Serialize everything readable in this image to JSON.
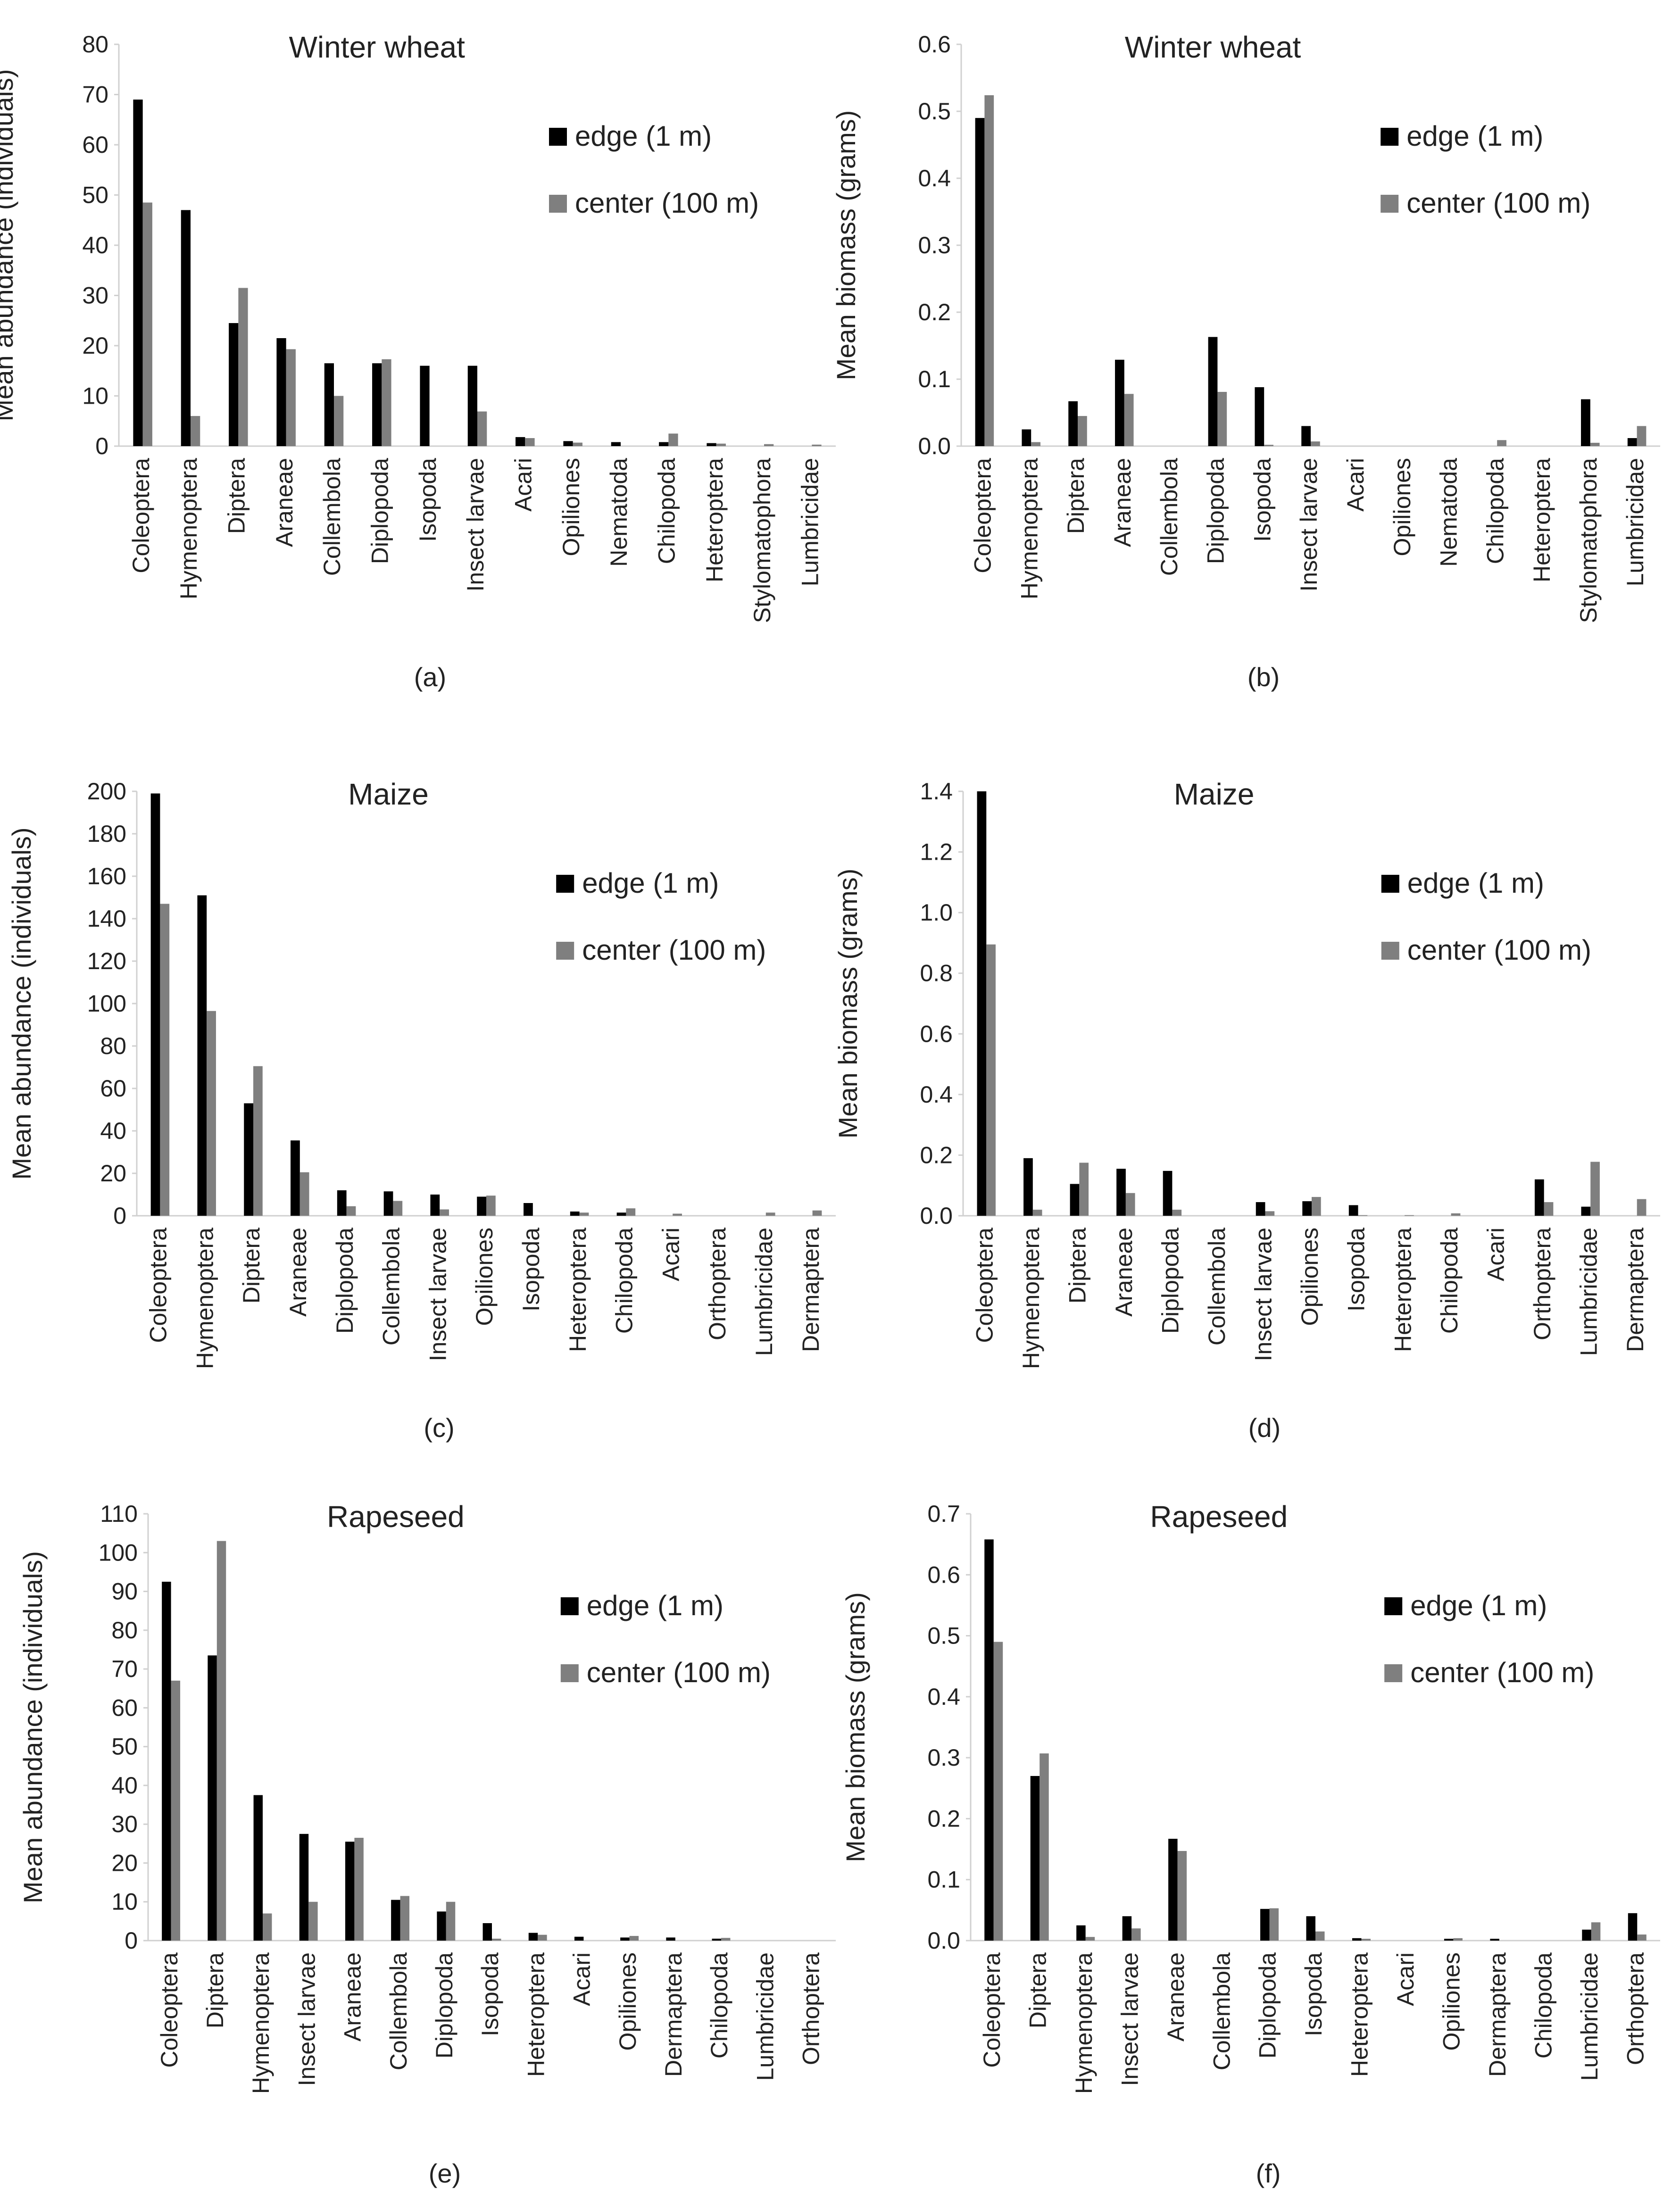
{
  "colors": {
    "edge": "#000000",
    "center": "#7f7f7f",
    "axis": "#d0d0d0",
    "text": "#222222"
  },
  "chart_data": [
    {
      "type": "bar",
      "panel": "(a)",
      "title": "Winter wheat",
      "xlabel": "",
      "ylabel": "Mean abundance (individuals)",
      "ylim": [
        0,
        80
      ],
      "yticks": [
        0,
        10,
        20,
        30,
        40,
        50,
        60,
        70,
        80
      ],
      "ytick_labels": [
        "0",
        "10",
        "20",
        "30",
        "40",
        "50",
        "60",
        "70",
        "80"
      ],
      "legend_position": "top-right",
      "grid": false,
      "categories": [
        "Coleoptera",
        "Hymenoptera",
        "Diptera",
        "Araneae",
        "Collembola",
        "Diplopoda",
        "Isopoda",
        "Insect larvae",
        "Acari",
        "Opiliones",
        "Nematoda",
        "Chilopoda",
        "Heteroptera",
        "Stylomatophora",
        "Lumbricidae"
      ],
      "series": [
        {
          "name": "edge (1 m)",
          "key": "edge",
          "values": [
            69,
            47,
            24.5,
            21.5,
            16.5,
            16.5,
            16,
            16,
            1.8,
            1,
            0.8,
            0.8,
            0.6,
            0,
            0
          ]
        },
        {
          "name": "center (100 m)",
          "key": "center",
          "values": [
            48.5,
            6,
            31.5,
            19.3,
            10,
            17.3,
            0,
            6.9,
            1.6,
            0.7,
            0,
            2.5,
            0.5,
            0.4,
            0.3
          ]
        }
      ]
    },
    {
      "type": "bar",
      "panel": "(b)",
      "title": "Winter wheat",
      "xlabel": "",
      "ylabel": "Mean biomass (grams)",
      "ylim": [
        0,
        0.6
      ],
      "yticks": [
        0,
        0.1,
        0.2,
        0.3,
        0.4,
        0.5,
        0.6
      ],
      "ytick_labels": [
        "0.0",
        "0.1",
        "0.2",
        "0.3",
        "0.4",
        "0.5",
        "0.6"
      ],
      "legend_position": "top-right",
      "grid": false,
      "categories": [
        "Coleoptera",
        "Hymenoptera",
        "Diptera",
        "Araneae",
        "Collembola",
        "Diplopoda",
        "Isopoda",
        "Insect larvae",
        "Acari",
        "Opiliones",
        "Nematoda",
        "Chilopoda",
        "Heteroptera",
        "Stylomatophora",
        "Lumbricidae"
      ],
      "series": [
        {
          "name": "edge (1 m)",
          "key": "edge",
          "values": [
            0.49,
            0.025,
            0.067,
            0.129,
            0,
            0.163,
            0.088,
            0.03,
            0,
            0,
            0,
            0,
            0,
            0.07,
            0.012
          ]
        },
        {
          "name": "center (100 m)",
          "key": "center",
          "values": [
            0.524,
            0.006,
            0.045,
            0.078,
            0,
            0.081,
            0.002,
            0.007,
            0,
            0,
            0,
            0.009,
            0,
            0.005,
            0.03
          ]
        }
      ]
    },
    {
      "type": "bar",
      "panel": "(c)",
      "title": "Maize",
      "xlabel": "",
      "ylabel": "Mean abundance (individuals)",
      "ylim": [
        0,
        200
      ],
      "yticks": [
        0,
        20,
        40,
        60,
        80,
        100,
        120,
        140,
        160,
        180,
        200
      ],
      "ytick_labels": [
        "0",
        "20",
        "40",
        "60",
        "80",
        "100",
        "120",
        "140",
        "160",
        "180",
        "200"
      ],
      "legend_position": "top-right",
      "grid": false,
      "categories": [
        "Coleoptera",
        "Hymenoptera",
        "Diptera",
        "Araneae",
        "Diplopoda",
        "Collembola",
        "Insect larvae",
        "Opiliones",
        "Isopoda",
        "Heteroptera",
        "Chilopoda",
        "Acari",
        "Orthoptera",
        "Lumbricidae",
        "Dermaptera"
      ],
      "series": [
        {
          "name": "edge (1 m)",
          "key": "edge",
          "values": [
            199,
            151,
            53,
            35.5,
            12,
            11.5,
            10,
            9,
            6,
            2,
            1.5,
            0,
            0,
            0,
            0
          ]
        },
        {
          "name": "center (100 m)",
          "key": "center",
          "values": [
            147,
            96.5,
            70.5,
            20.5,
            4.5,
            7,
            3,
            9.5,
            0,
            1.5,
            3.5,
            1,
            0,
            1.5,
            2.5
          ]
        }
      ]
    },
    {
      "type": "bar",
      "panel": "(d)",
      "title": "Maize",
      "xlabel": "",
      "ylabel": "Mean biomass (grams)",
      "ylim": [
        0,
        1.4
      ],
      "yticks": [
        0,
        0.2,
        0.4,
        0.6,
        0.8,
        1.0,
        1.2,
        1.4
      ],
      "ytick_labels": [
        "0.0",
        "0.2",
        "0.4",
        "0.6",
        "0.8",
        "1.0",
        "1.2",
        "1.4"
      ],
      "legend_position": "top-right",
      "grid": false,
      "categories": [
        "Coleoptera",
        "Hymenoptera",
        "Diptera",
        "Araneae",
        "Diplopoda",
        "Collembola",
        "Insect larvae",
        "Opiliones",
        "Isopoda",
        "Heteroptera",
        "Chilopoda",
        "Acari",
        "Orthoptera",
        "Lumbricidae",
        "Dermaptera"
      ],
      "series": [
        {
          "name": "edge (1 m)",
          "key": "edge",
          "values": [
            1.4,
            0.19,
            0.105,
            0.155,
            0.148,
            0,
            0.045,
            0.048,
            0.035,
            0,
            0,
            0,
            0.12,
            0.03,
            0
          ]
        },
        {
          "name": "center (100 m)",
          "key": "center",
          "values": [
            0.895,
            0.02,
            0.175,
            0.075,
            0.02,
            0,
            0.015,
            0.062,
            0.002,
            0.002,
            0.008,
            0,
            0.045,
            0.178,
            0.055
          ]
        }
      ]
    },
    {
      "type": "bar",
      "panel": "(e)",
      "title": "Rapeseed",
      "xlabel": "",
      "ylabel": "Mean abundance (individuals)",
      "ylim": [
        0,
        110
      ],
      "yticks": [
        0,
        10,
        20,
        30,
        40,
        50,
        60,
        70,
        80,
        90,
        100,
        110
      ],
      "ytick_labels": [
        "0",
        "10",
        "20",
        "30",
        "40",
        "50",
        "60",
        "70",
        "80",
        "90",
        "100",
        "110"
      ],
      "legend_position": "top-right",
      "grid": false,
      "categories": [
        "Coleoptera",
        "Diptera",
        "Hymenoptera",
        "Insect larvae",
        "Araneae",
        "Collembola",
        "Diplopoda",
        "Isopoda",
        "Heteroptera",
        "Acari",
        "Opiliones",
        "Dermaptera",
        "Chilopoda",
        "Lumbricidae",
        "Orthoptera"
      ],
      "series": [
        {
          "name": "edge (1 m)",
          "key": "edge",
          "values": [
            92.5,
            73.5,
            37.5,
            27.5,
            25.5,
            10.5,
            7.5,
            4.5,
            2,
            1,
            0.8,
            0.8,
            0.5,
            0,
            0
          ]
        },
        {
          "name": "center (100 m)",
          "key": "center",
          "values": [
            67,
            103,
            7,
            10,
            26.5,
            11.5,
            10,
            0.5,
            1.5,
            0,
            1.2,
            0,
            0.7,
            0,
            0
          ]
        }
      ]
    },
    {
      "type": "bar",
      "panel": "(f)",
      "title": "Rapeseed",
      "xlabel": "",
      "ylabel": "Mean biomass (grams)",
      "ylim": [
        0,
        0.7
      ],
      "yticks": [
        0,
        0.1,
        0.2,
        0.3,
        0.4,
        0.5,
        0.6,
        0.7
      ],
      "ytick_labels": [
        "0.0",
        "0.1",
        "0.2",
        "0.3",
        "0.4",
        "0.5",
        "0.6",
        "0.7"
      ],
      "legend_position": "top-right",
      "grid": false,
      "categories": [
        "Coleoptera",
        "Diptera",
        "Hymenoptera",
        "Insect larvae",
        "Araneae",
        "Collembola",
        "Diplopoda",
        "Isopoda",
        "Heteroptera",
        "Acari",
        "Opiliones",
        "Dermaptera",
        "Chilopoda",
        "Lumbricidae",
        "Orthoptera"
      ],
      "series": [
        {
          "name": "edge (1 m)",
          "key": "edge",
          "values": [
            0.658,
            0.27,
            0.025,
            0.04,
            0.167,
            0,
            0.052,
            0.04,
            0.004,
            0,
            0.003,
            0.003,
            0,
            0.018,
            0.045
          ]
        },
        {
          "name": "center (100 m)",
          "key": "center",
          "values": [
            0.49,
            0.307,
            0.006,
            0.02,
            0.147,
            0,
            0.053,
            0.015,
            0.003,
            0,
            0.004,
            0,
            0,
            0.03,
            0.01
          ]
        }
      ]
    }
  ]
}
